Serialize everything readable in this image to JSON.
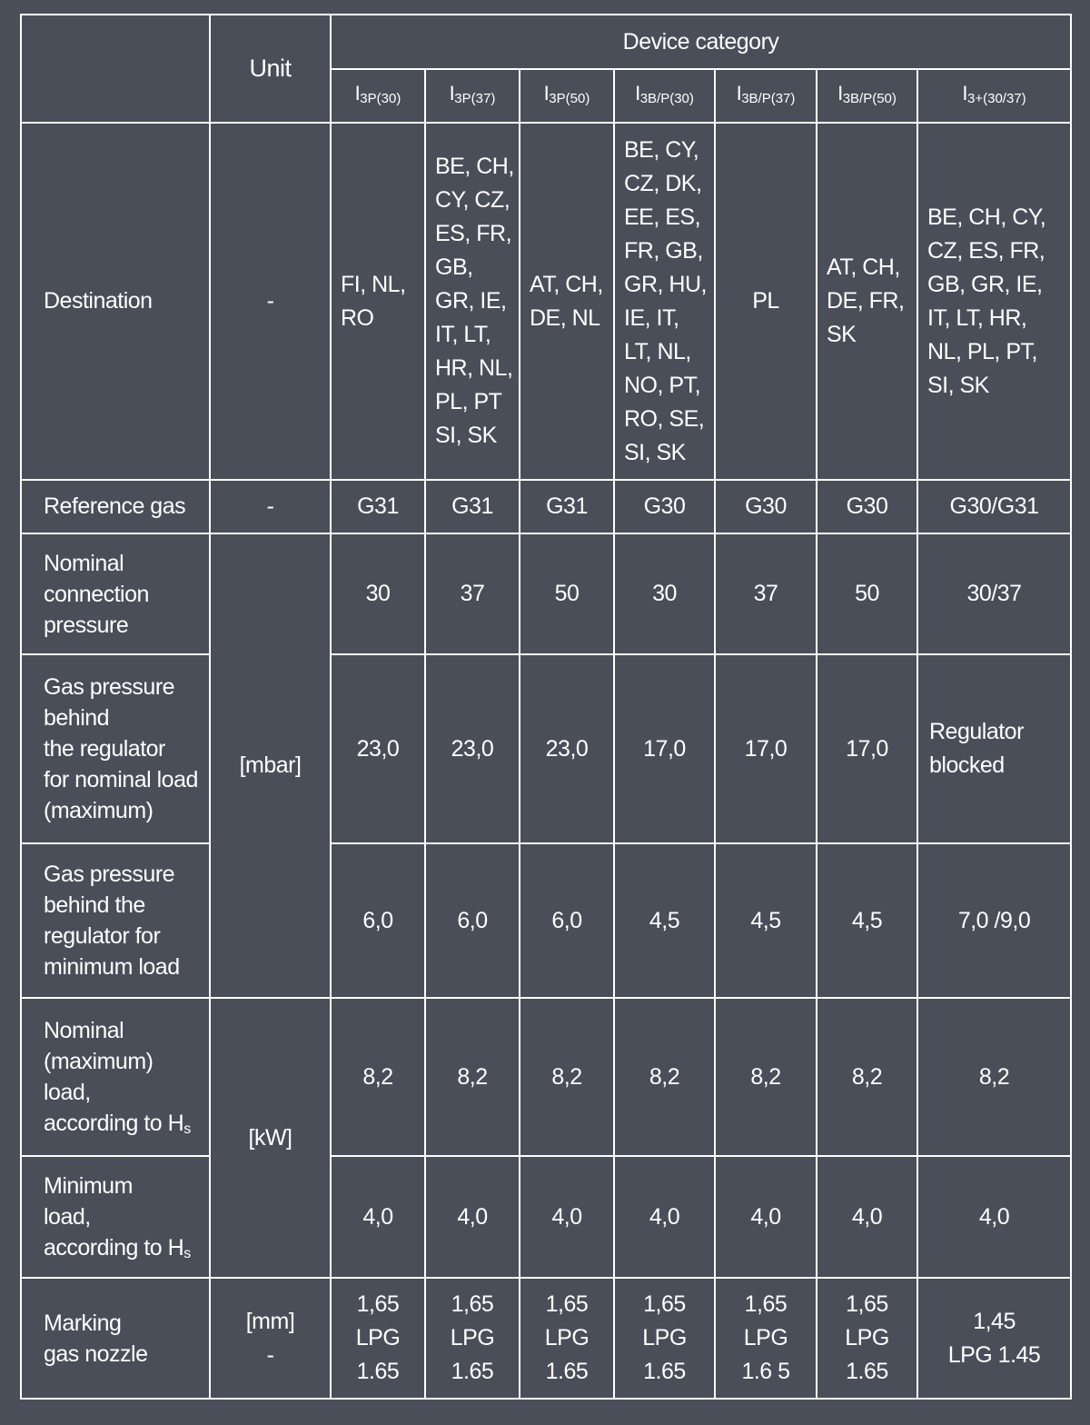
{
  "header": {
    "unit": "Unit",
    "device_category": "Device category",
    "categories": [
      {
        "main": "I",
        "sub": "3P(30)"
      },
      {
        "main": "I",
        "sub": "3P(37)"
      },
      {
        "main": "I",
        "sub": "3P(50)"
      },
      {
        "main": "I",
        "sub": "3B/P(30)"
      },
      {
        "main": "I",
        "sub": "3B/P(37)"
      },
      {
        "main": "I",
        "sub": "3B/P(50)"
      },
      {
        "main": "I",
        "sub": "3+(30/37)"
      }
    ]
  },
  "destination": {
    "label": "Destination",
    "unit": "-",
    "values": [
      [
        "FI, NL,",
        "RO"
      ],
      [
        "BE, CH,",
        "CY, CZ,",
        "ES, FR,",
        "GB,",
        "GR, IE,",
        "IT, LT,",
        "HR, NL,",
        "PL, PT",
        "SI, SK"
      ],
      [
        "AT, CH,",
        "DE, NL"
      ],
      [
        "BE, CY,",
        "CZ, DK,",
        "EE, ES,",
        "FR, GB,",
        "GR, HU,",
        "IE, IT,",
        "LT, NL,",
        "NO, PT,",
        "RO, SE,",
        "SI, SK"
      ],
      [
        "PL"
      ],
      [
        "AT, CH,",
        "DE, FR,",
        "SK"
      ],
      [
        "BE, CH, CY,",
        "CZ, ES, FR,",
        "GB, GR, IE,",
        "IT, LT, HR,",
        "NL, PL, PT,",
        "SI, SK"
      ]
    ]
  },
  "reference_gas": {
    "label": "Reference gas",
    "unit": "-",
    "values": [
      "G31",
      "G31",
      "G31",
      "G30",
      "G30",
      "G30",
      "G30/G31"
    ]
  },
  "mbar_unit": "[mbar]",
  "nominal_connection_pressure": {
    "label": [
      "Nominal",
      "connection",
      "pressure"
    ],
    "values": [
      "30",
      "37",
      "50",
      "30",
      "37",
      "50",
      "30/37"
    ]
  },
  "pressure_nominal_load": {
    "label": [
      "Gas pressure",
      "behind",
      "the regulator",
      "for nominal load",
      "(maximum)"
    ],
    "values": [
      "23,0",
      "23,0",
      "23,0",
      "17,0",
      "17,0",
      "17,0"
    ],
    "last": [
      "Regulator",
      "blocked"
    ]
  },
  "pressure_minimum_load": {
    "label": [
      "Gas pressure",
      "behind the",
      "regulator for",
      "minimum load"
    ],
    "values": [
      "6,0",
      "6,0",
      "6,0",
      "4,5",
      "4,5",
      "4,5",
      "7,0 /9,0"
    ]
  },
  "kw_unit": "[kW]",
  "nominal_load": {
    "label": [
      "Nominal",
      "(maximum)",
      "load,",
      "according to H"
    ],
    "label_sub": "s",
    "values": [
      "8,2",
      "8,2",
      "8,2",
      "8,2",
      "8,2",
      "8,2",
      "8,2"
    ]
  },
  "minimum_load": {
    "label": [
      "Minimum",
      "load,",
      "according to H"
    ],
    "label_sub": "s",
    "values": [
      "4,0",
      "4,0",
      "4,0",
      "4,0",
      "4,0",
      "4,0",
      "4,0"
    ]
  },
  "nozzle": {
    "label": [
      "Marking",
      "gas nozzle"
    ],
    "unit": [
      "[mm]",
      "-"
    ],
    "values": [
      [
        "1,65",
        "LPG",
        "1.65"
      ],
      [
        "1,65",
        "LPG",
        "1.65"
      ],
      [
        "1,65",
        "LPG",
        "1.65"
      ],
      [
        "1,65",
        "LPG",
        "1.65"
      ],
      [
        "1,65",
        "LPG",
        "1.6 5"
      ],
      [
        "1,65",
        "LPG",
        "1.65"
      ],
      [
        "1,45",
        "LPG 1.45"
      ]
    ]
  }
}
